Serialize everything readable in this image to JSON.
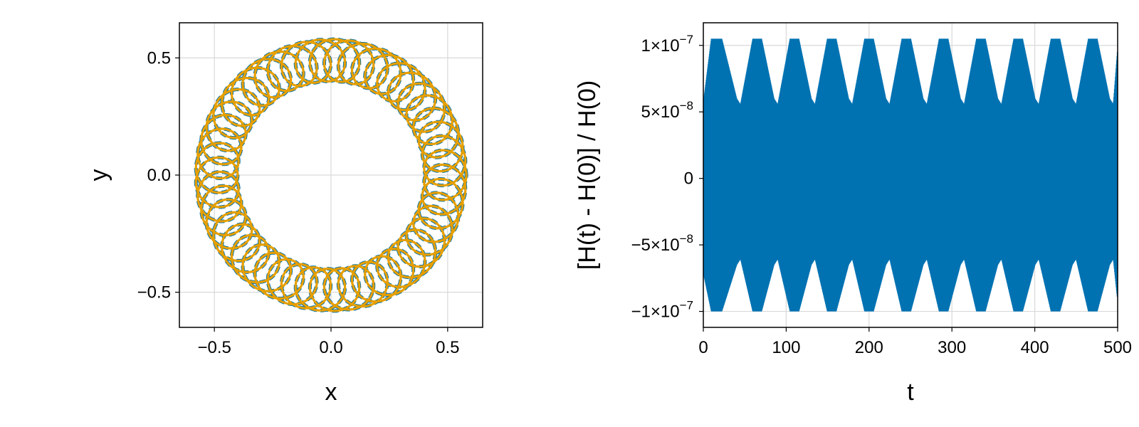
{
  "chart_data": [
    {
      "type": "line",
      "title": "",
      "xlabel": "x",
      "ylabel": "y",
      "xlim": [
        -0.65,
        0.65
      ],
      "ylim": [
        -0.65,
        0.65
      ],
      "grid": true,
      "aspect": "equal",
      "x_ticks": [
        -0.5,
        0.0,
        0.5
      ],
      "x_tick_labels": [
        "−0.5",
        "0.0",
        "0.5"
      ],
      "y_ticks": [
        -0.5,
        0.0,
        0.5
      ],
      "y_tick_labels": [
        "−0.5",
        "0.0",
        "0.5"
      ],
      "series": [
        {
          "style": "dashed",
          "color": "#0072b2",
          "orbit": {
            "center_radius": 0.49,
            "epicycle_radius": 0.09,
            "loops": 50
          }
        },
        {
          "style": "solid",
          "color": "#e69f00",
          "orbit": {
            "center_radius": 0.49,
            "epicycle_radius": 0.09,
            "loops": 50
          }
        }
      ]
    },
    {
      "type": "line",
      "title": "",
      "xlabel": "t",
      "ylabel": "[H(t) - H(0)] / H(0)",
      "xlim": [
        0,
        500
      ],
      "ylim": [
        -1.12e-07,
        1.17e-07
      ],
      "grid": true,
      "x_ticks": [
        0,
        100,
        200,
        300,
        400,
        500
      ],
      "x_tick_labels": [
        "0",
        "100",
        "200",
        "300",
        "400",
        "500"
      ],
      "y_ticks": [
        -1e-07,
        -5e-08,
        0,
        5e-08,
        1e-07
      ],
      "y_tick_labels": [
        {
          "base": "−1×10",
          "exp": "−7"
        },
        {
          "base": "−5×10",
          "exp": "−8"
        },
        {
          "base": "0",
          "exp": ""
        },
        {
          "base": "5×10",
          "exp": "−8"
        },
        {
          "base": "1×10",
          "exp": "−7"
        }
      ],
      "series": [
        {
          "color": "#0072b2",
          "envelope": {
            "t": [
              0,
              10,
              22,
              40,
              45,
              60,
              70,
              85,
              90,
              105,
              115,
              130,
              135,
              150,
              160,
              175,
              180,
              195,
              205,
              220,
              225,
              240,
              250,
              265,
              270,
              285,
              295,
              310,
              315,
              330,
              340,
              355,
              360,
              375,
              385,
              400,
              405,
              420,
              430,
              445,
              450,
              465,
              475,
              490,
              495,
              500
            ],
            "upper": [
              5.5e-08,
              1.05e-07,
              1.05e-07,
              6e-08,
              5.5e-08,
              1.05e-07,
              1.05e-07,
              6e-08,
              5.5e-08,
              1.05e-07,
              1.05e-07,
              6e-08,
              5.5e-08,
              1.05e-07,
              1.05e-07,
              6e-08,
              5.5e-08,
              1.05e-07,
              1.05e-07,
              6e-08,
              5.5e-08,
              1.05e-07,
              1.05e-07,
              6e-08,
              5.5e-08,
              1.05e-07,
              1.05e-07,
              6e-08,
              5.5e-08,
              1.05e-07,
              1.05e-07,
              6e-08,
              5.5e-08,
              1.05e-07,
              1.05e-07,
              6e-08,
              5.5e-08,
              1.05e-07,
              1.05e-07,
              6e-08,
              5.5e-08,
              1.05e-07,
              1.05e-07,
              6e-08,
              5.5e-08,
              9.5e-08
            ],
            "lower": [
              -7e-08,
              -1e-07,
              -1e-07,
              -6.5e-08,
              -6e-08,
              -1e-07,
              -1e-07,
              -6.5e-08,
              -6e-08,
              -1e-07,
              -1e-07,
              -6.5e-08,
              -6e-08,
              -1e-07,
              -1e-07,
              -6.5e-08,
              -6e-08,
              -1e-07,
              -1e-07,
              -6.5e-08,
              -6e-08,
              -1e-07,
              -1e-07,
              -6.5e-08,
              -6e-08,
              -1e-07,
              -1e-07,
              -6.5e-08,
              -6e-08,
              -1e-07,
              -1e-07,
              -6.5e-08,
              -6e-08,
              -1e-07,
              -1e-07,
              -6.5e-08,
              -6e-08,
              -1e-07,
              -1e-07,
              -6.5e-08,
              -6e-08,
              -1e-07,
              -1e-07,
              -6.5e-08,
              -6e-08,
              -9e-08
            ]
          }
        }
      ]
    }
  ]
}
